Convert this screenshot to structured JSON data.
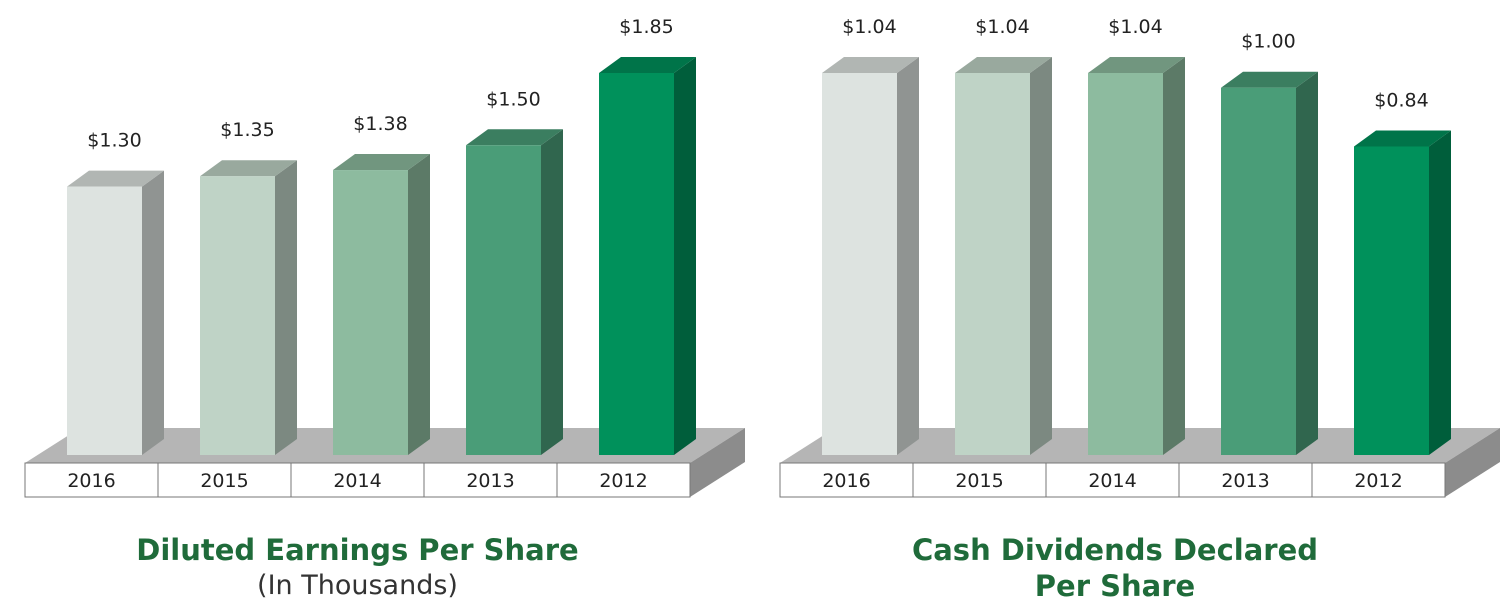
{
  "chart_data": [
    {
      "type": "bar",
      "title": "Diluted Earnings Per Share",
      "subtitle": "(In Thousands)",
      "categories": [
        "2016",
        "2015",
        "2014",
        "2013",
        "2012"
      ],
      "values": [
        1.3,
        1.35,
        1.38,
        1.5,
        1.85
      ],
      "value_labels": [
        "$1.30",
        "$1.35",
        "$1.38",
        "$1.50",
        "$1.85"
      ],
      "colors": [
        "#dde3e0",
        "#bfd3c6",
        "#8dbb9f",
        "#4a9d78",
        "#00915b"
      ]
    },
    {
      "type": "bar",
      "title": "Cash Dividends Declared Per Share",
      "categories": [
        "2016",
        "2015",
        "2014",
        "2013",
        "2012"
      ],
      "values": [
        1.04,
        1.04,
        1.04,
        1.0,
        0.84
      ],
      "value_labels": [
        "$1.04",
        "$1.04",
        "$1.04",
        "$1.00",
        "$0.84"
      ],
      "colors": [
        "#dde3e0",
        "#bfd3c6",
        "#8dbb9f",
        "#4a9d78",
        "#00915b"
      ]
    }
  ]
}
